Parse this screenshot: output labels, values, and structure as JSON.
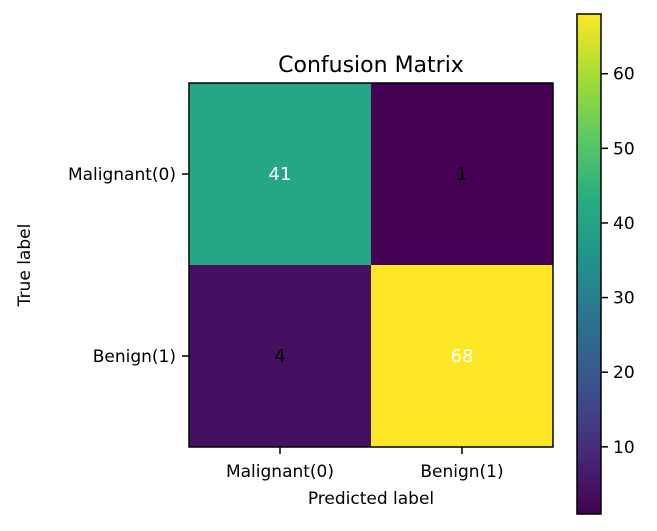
{
  "chart_data": {
    "type": "heatmap",
    "title": "Confusion Matrix",
    "xlabel": "Predicted label",
    "ylabel": "True label",
    "x_categories": [
      "Malignant(0)",
      "Benign(1)"
    ],
    "y_categories": [
      "Malignant(0)",
      "Benign(1)"
    ],
    "values": [
      [
        41,
        1
      ],
      [
        4,
        68
      ]
    ],
    "colormap": "viridis",
    "colorbar": {
      "min": 1,
      "max": 68,
      "ticks": [
        10,
        20,
        30,
        40,
        50,
        60
      ]
    },
    "grid": false
  },
  "colors": {
    "text_light": "#ffffff",
    "text_dark": "#000000",
    "axis": "#000000"
  }
}
